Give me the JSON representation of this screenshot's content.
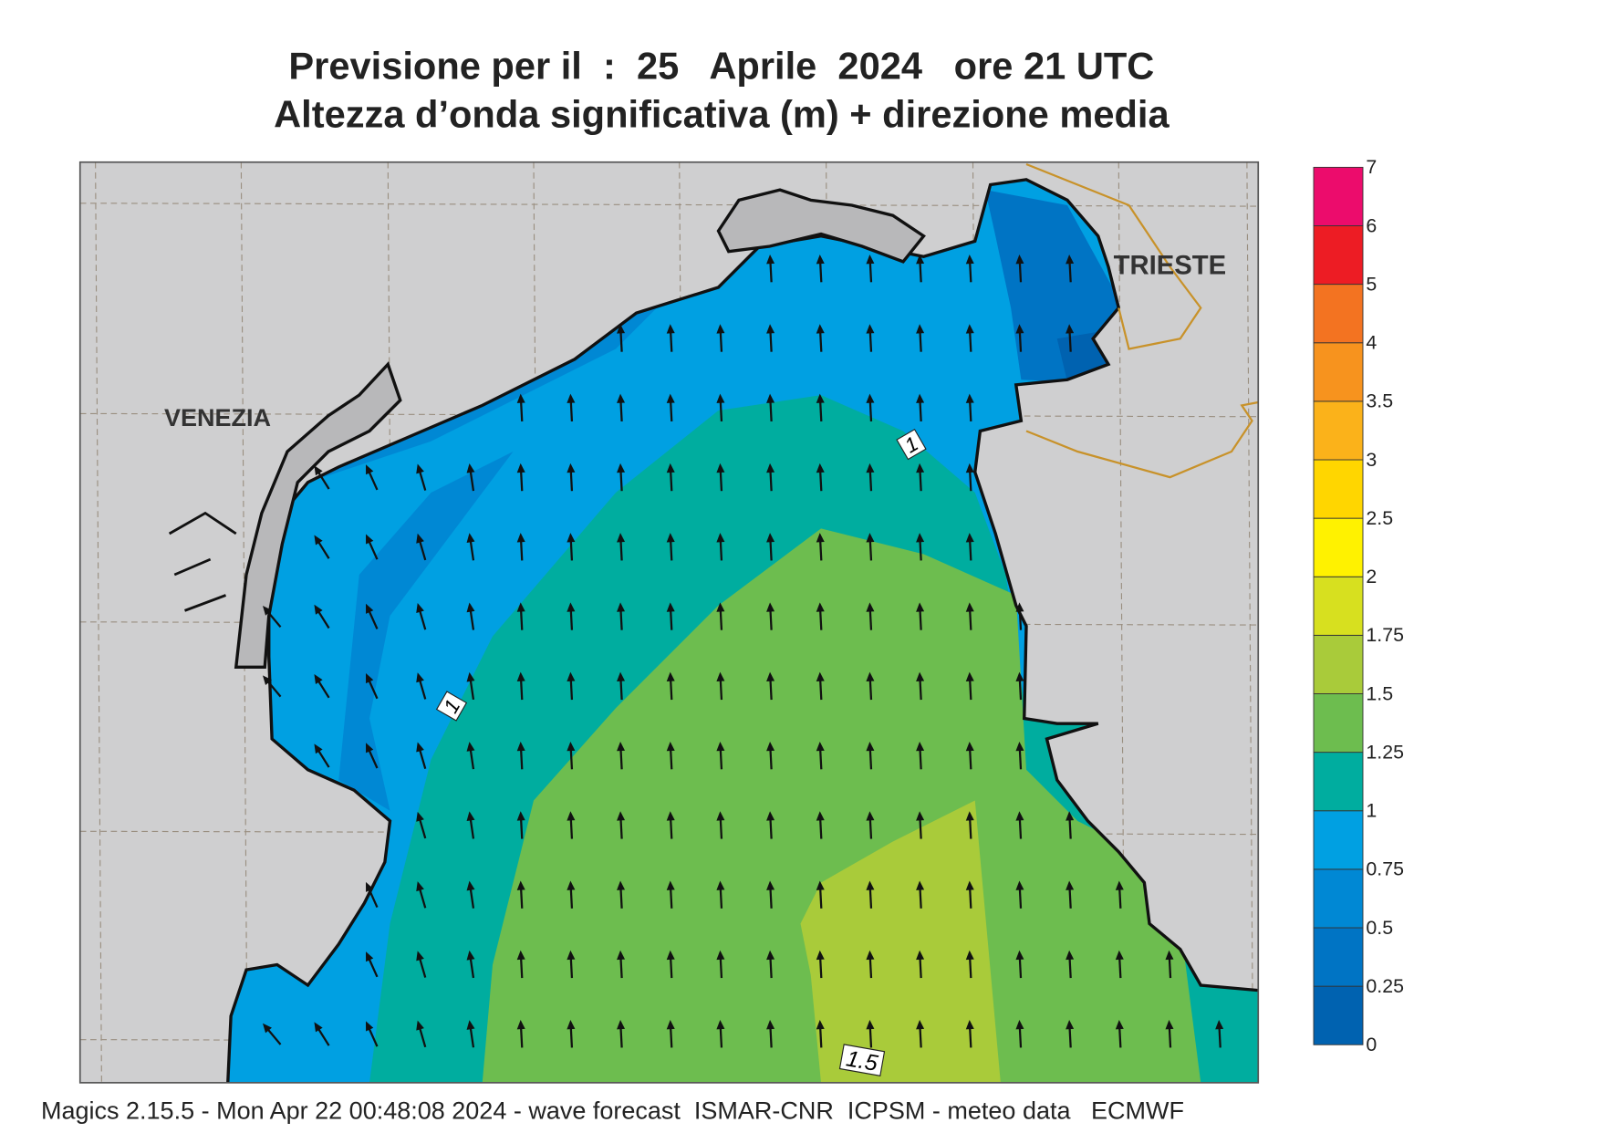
{
  "header": {
    "title": "Previsione per il  :  25   Aprile  2024   ore 21 UTC",
    "subtitle": "Altezza d’onda significativa (m) + direzione media"
  },
  "map": {
    "places": [
      "VENEZIA",
      "TRIESTE"
    ],
    "contour_labels": [
      "1",
      "1",
      "1.5"
    ]
  },
  "legend": {
    "levels": [
      0,
      0.25,
      0.5,
      0.75,
      1,
      1.25,
      1.5,
      1.75,
      2,
      2.5,
      3,
      3.5,
      4,
      5,
      6,
      7
    ],
    "colors": [
      "#0062b0",
      "#0074c4",
      "#0088d4",
      "#00a0e2",
      "#00ad9f",
      "#6dbd4f",
      "#a9cb3a",
      "#d7e01f",
      "#fff200",
      "#ffd600",
      "#fbb21a",
      "#f7931e",
      "#f37321",
      "#ed1c24",
      "#ec0c6c"
    ]
  },
  "footer": "Magics 2.15.5 - Mon Apr 22 00:48:08 2024 - wave forecast  ISMAR-CNR  ICPSM - meteo data   ECMWF"
}
